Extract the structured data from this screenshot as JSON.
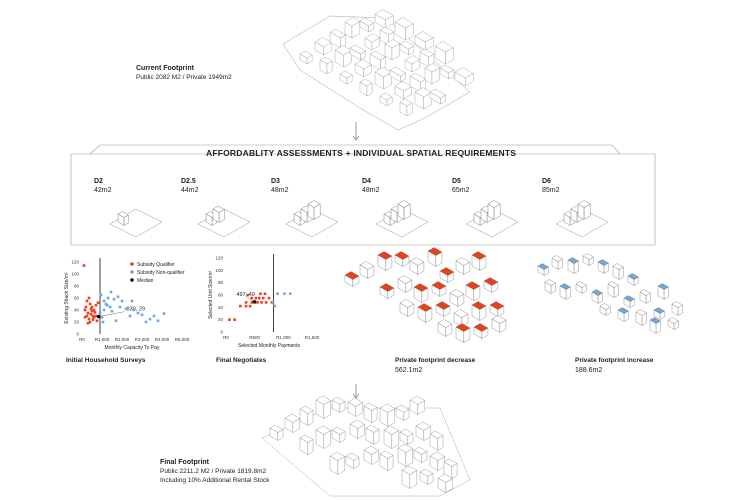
{
  "current_footprint": {
    "title": "Current Footprint",
    "subtitle": "Public 2082 M2 / Private 1949m2"
  },
  "banner": {
    "title": "AFFORDABLITY ASSESSMENTS + INDIVIDUAL SPATIAL REQUIREMENTS"
  },
  "units": [
    {
      "code": "D2",
      "area": "42m2"
    },
    {
      "code": "D2.5",
      "area": "44m2"
    },
    {
      "code": "D3",
      "area": "48m2"
    },
    {
      "code": "D4",
      "area": "48m2"
    },
    {
      "code": "D5",
      "area": "65m2"
    },
    {
      "code": "D6",
      "area": "85m2"
    }
  ],
  "panels": {
    "surveys_caption": "Initial Household Surveys",
    "negotiates_caption": "Final Negotiates",
    "decrease": {
      "title": "Private footprint decrease",
      "value": "562.1m2"
    },
    "increase": {
      "title": "Private footprint increase",
      "value": "188.6m2"
    }
  },
  "final_footprint": {
    "title": "Final Footprint",
    "line1": "Public 2211.2 M2 / Private 1819.8m2",
    "line2": "Including 10% Additional Rental Stock"
  },
  "colors": {
    "qualifier": "#e8401c",
    "non_qualifier": "#6fa8dc",
    "median": "#111111",
    "line": "#9a9a9a"
  },
  "chart_data": [
    {
      "type": "scatter",
      "title": "",
      "xlabel": "Monthly Capacity To Pay",
      "ylabel": "Existing Shack Size/m²",
      "xlim": [
        0,
        5000
      ],
      "ylim": [
        0,
        120
      ],
      "x_ticks": [
        "R0",
        "R1,000",
        "R2,000",
        "R3,000",
        "R4,000",
        "R5,000"
      ],
      "y_ticks": [
        "0",
        "20",
        "40",
        "60",
        "80",
        "100",
        "120"
      ],
      "legend": [
        "Subsidy Qualifier",
        "Subsidy Non-qualifier",
        "Median"
      ],
      "legend_position": "top-right",
      "series": [
        {
          "name": "Subsidy Qualifier",
          "points": [
            [
              100,
              114
            ],
            [
              150,
              40
            ],
            [
              200,
              45
            ],
            [
              250,
              30
            ],
            [
              300,
              35
            ],
            [
              350,
              25
            ],
            [
              400,
              50
            ],
            [
              450,
              42
            ],
            [
              500,
              38
            ],
            [
              550,
              30
            ],
            [
              600,
              28
            ],
            [
              650,
              36
            ],
            [
              700,
              48
            ],
            [
              750,
              22
            ],
            [
              300,
              18
            ],
            [
              400,
              20
            ],
            [
              500,
              45
            ],
            [
              250,
              55
            ],
            [
              350,
              60
            ],
            [
              450,
              33
            ],
            [
              600,
              40
            ],
            [
              150,
              28
            ],
            [
              800,
              52
            ],
            [
              700,
              30
            ],
            [
              550,
              24
            ]
          ]
        },
        {
          "name": "Subsidy Non-qualifier",
          "points": [
            [
              900,
              35
            ],
            [
              1000,
              28
            ],
            [
              1100,
              40
            ],
            [
              1200,
              50
            ],
            [
              1300,
              60
            ],
            [
              1400,
              45
            ],
            [
              1500,
              38
            ],
            [
              1600,
              58
            ],
            [
              1800,
              62
            ],
            [
              2000,
              55
            ],
            [
              2200,
              42
            ],
            [
              2400,
              30
            ],
            [
              2600,
              40
            ],
            [
              2800,
              35
            ],
            [
              3000,
              32
            ],
            [
              3200,
              20
            ],
            [
              3400,
              25
            ],
            [
              3600,
              30
            ],
            [
              3800,
              22
            ],
            [
              4100,
              34
            ],
            [
              950,
              65
            ],
            [
              1050,
              20
            ],
            [
              1250,
              48
            ],
            [
              1700,
              22
            ],
            [
              2500,
              55
            ],
            [
              1900,
              45
            ],
            [
              1100,
              55
            ],
            [
              1450,
              70
            ]
          ]
        },
        {
          "name": "Median",
          "points": [
            [
              830,
              29
            ]
          ]
        }
      ],
      "median_line_x": 900,
      "annotation": "830, 29"
    },
    {
      "type": "scatter",
      "title": "",
      "xlabel": "Selected Monthly Payments",
      "ylabel": "Selected Unit Size/m²",
      "xlim": [
        0,
        1500
      ],
      "ylim": [
        0,
        120
      ],
      "x_ticks": [
        "R0",
        "R500",
        "R1,000",
        "R1,500"
      ],
      "y_ticks": [
        "0",
        "20",
        "40",
        "60",
        "80",
        "100",
        "120"
      ],
      "series": [
        {
          "name": "Subsidy Qualifier",
          "points": [
            [
              60,
              20
            ],
            [
              150,
              20
            ],
            [
              250,
              42
            ],
            [
              350,
              42
            ],
            [
              420,
              42
            ],
            [
              450,
              48
            ],
            [
              500,
              48
            ],
            [
              550,
              48
            ],
            [
              620,
              48
            ],
            [
              700,
              48
            ],
            [
              450,
              55
            ],
            [
              520,
              55
            ],
            [
              580,
              55
            ],
            [
              650,
              55
            ],
            [
              350,
              48
            ],
            [
              600,
              62
            ],
            [
              680,
              62
            ],
            [
              750,
              55
            ],
            [
              800,
              48
            ],
            [
              380,
              60
            ]
          ]
        },
        {
          "name": "Subsidy Non-qualifier",
          "points": [
            [
              900,
              62
            ],
            [
              1020,
              62
            ],
            [
              1120,
              62
            ],
            [
              820,
              48
            ],
            [
              850,
              42
            ]
          ]
        },
        {
          "name": "Median",
          "points": [
            [
              497,
              49
            ]
          ]
        }
      ],
      "median_line_x": 830,
      "annotation": "497, 49"
    }
  ]
}
